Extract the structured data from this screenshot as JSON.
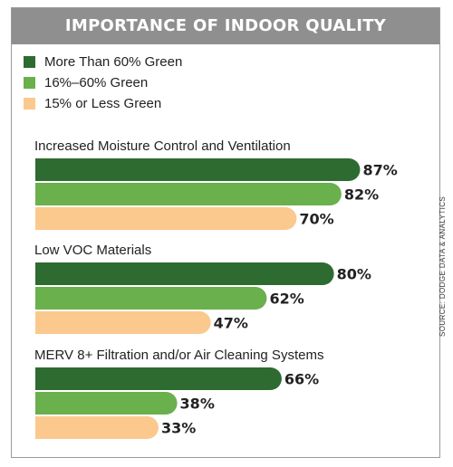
{
  "chart_data": {
    "type": "bar",
    "orientation": "horizontal",
    "title": "IMPORTANCE OF INDOOR QUALITY",
    "categories": [
      "Increased Moisture Control and Ventilation",
      "Low VOC Materials",
      "MERV 8+ Filtration and/or Air Cleaning Systems"
    ],
    "series": [
      {
        "name": "More Than 60% Green",
        "color": "#2e6b30",
        "values": [
          87,
          80,
          66
        ]
      },
      {
        "name": "16%–60% Green",
        "color": "#6ab04c",
        "values": [
          82,
          62,
          38
        ]
      },
      {
        "name": "15% or Less Green",
        "color": "#fbc98e",
        "values": [
          70,
          47,
          33
        ]
      }
    ],
    "value_suffix": "%",
    "xlim": [
      0,
      100
    ],
    "grid": false,
    "legend_position": "top-left",
    "source": "SOURCE: DODGE DATA & ANALYTICS"
  }
}
